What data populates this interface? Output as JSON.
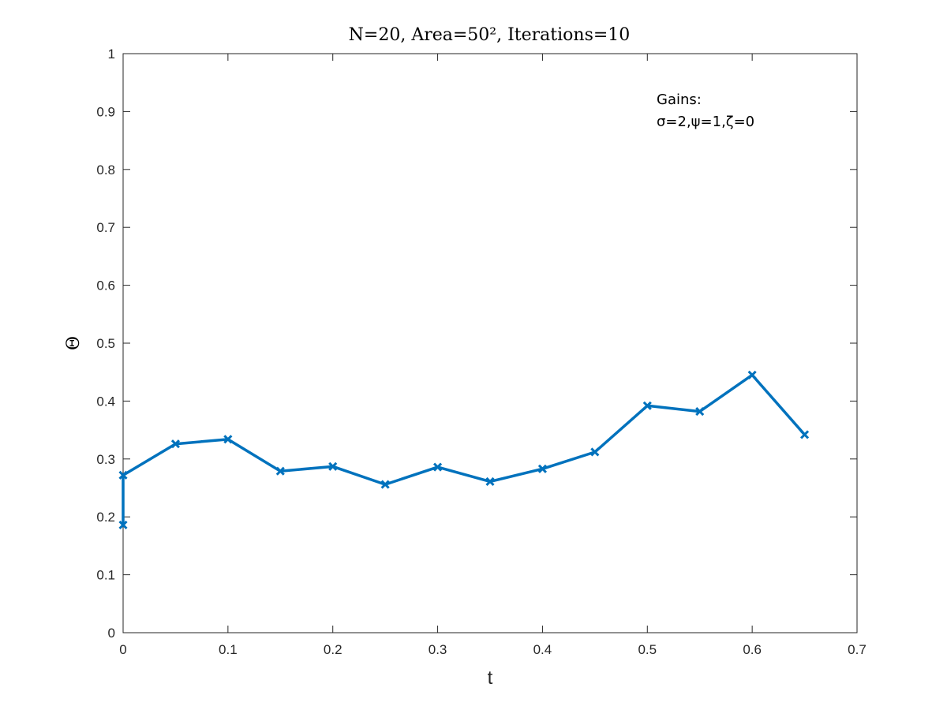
{
  "chart_data": {
    "type": "line",
    "title": "N=20, Area=50², Iterations=10",
    "xlabel": "t",
    "ylabel": "Θ",
    "xlim": [
      0,
      0.7
    ],
    "ylim": [
      0,
      1
    ],
    "xticks": [
      "0",
      "0.1",
      "0.2",
      "0.3",
      "0.4",
      "0.5",
      "0.6",
      "0.7"
    ],
    "yticks": [
      "0",
      "0.1",
      "0.2",
      "0.3",
      "0.4",
      "0.5",
      "0.6",
      "0.7",
      "0.8",
      "0.9",
      "1"
    ],
    "grid": false,
    "series": [
      {
        "color": "#0072BD",
        "marker": "x",
        "x": [
          0,
          0,
          0.05,
          0.1,
          0.15,
          0.2,
          0.25,
          0.3,
          0.35,
          0.4,
          0.45,
          0.5,
          0.55,
          0.6,
          0.65
        ],
        "y": [
          0.186,
          0.272,
          0.326,
          0.334,
          0.279,
          0.287,
          0.256,
          0.286,
          0.261,
          0.283,
          0.312,
          0.392,
          0.382,
          0.445,
          0.342
        ]
      }
    ],
    "annotation": {
      "line1": "Gains:",
      "line2": "σ=2,ψ=1,ζ=0"
    }
  }
}
